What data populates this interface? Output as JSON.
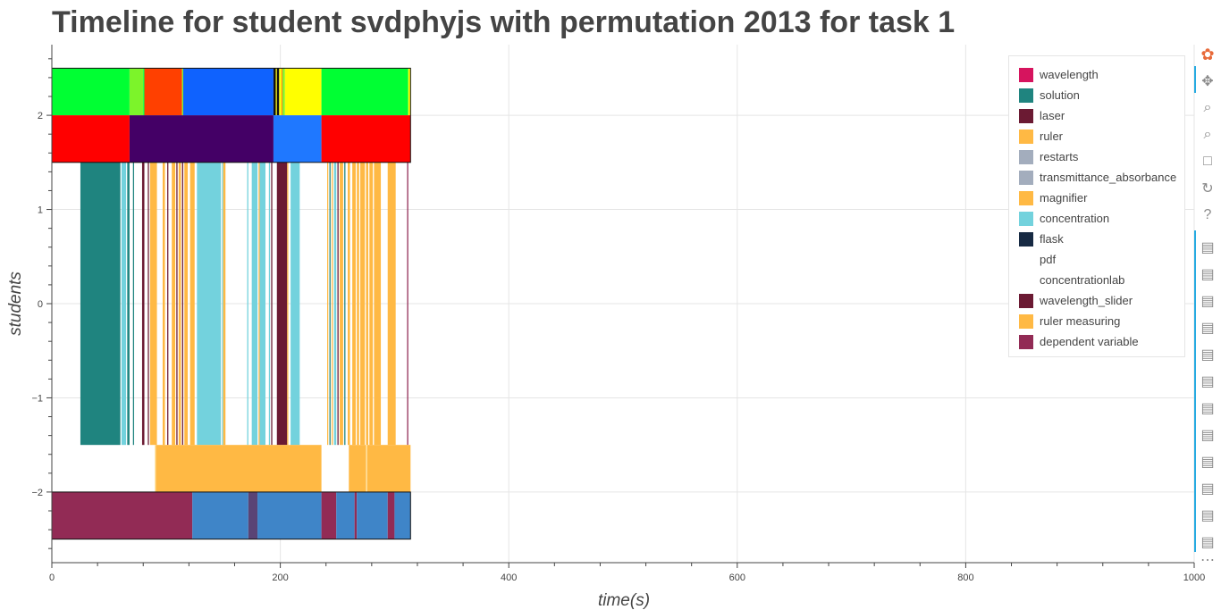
{
  "title": "Timeline for student svdphyjs with permutation 2013 for task 1",
  "chart_data": {
    "type": "timeline",
    "title": "Timeline for student svdphyjs with permutation 2013 for task 1",
    "xlabel": "time(s)",
    "ylabel": "students",
    "xlim": [
      0,
      1000
    ],
    "ylim": [
      -2.75,
      2.75
    ],
    "x_ticks": [
      0,
      200,
      400,
      600,
      800,
      1000
    ],
    "y_ticks": [
      2,
      1,
      0,
      -1,
      -2
    ],
    "y_tick_labels": [
      "2",
      "1",
      "0",
      "−1",
      "−2"
    ],
    "grid": true,
    "legend_position": "top-right",
    "legend": [
      {
        "label": "wavelength",
        "color": "#d6145e"
      },
      {
        "label": "solution",
        "color": "#1f847f"
      },
      {
        "label": "laser",
        "color": "#6b1a33"
      },
      {
        "label": "ruler",
        "color": "#ffb944"
      },
      {
        "label": "restarts",
        "color": "#a3adbd"
      },
      {
        "label": "transmittance_absorbance",
        "color": "#a3adbd"
      },
      {
        "label": "magnifier",
        "color": "#ffb944"
      },
      {
        "label": "concentration",
        "color": "#73d2dd"
      },
      {
        "label": "flask",
        "color": "#172a43"
      },
      {
        "label": "pdf",
        "color": "#ffffff"
      },
      {
        "label": "concentrationlab",
        "color": "#ffffff"
      },
      {
        "label": "wavelength_slider",
        "color": "#6b1a33"
      },
      {
        "label": "ruler measuring",
        "color": "#ffb944"
      },
      {
        "label": "dependent variable",
        "color": "#922b55"
      }
    ],
    "rows": [
      {
        "y_range": [
          2,
          2.5
        ],
        "segments": [
          {
            "x0": 0,
            "x1": 68,
            "color": "#00ff33"
          },
          {
            "x0": 68,
            "x1": 80,
            "color": "#7cf42a"
          },
          {
            "x0": 80,
            "x1": 81,
            "color": "#00ff33"
          },
          {
            "x0": 81,
            "x1": 114,
            "color": "#ff4000"
          },
          {
            "x0": 114,
            "x1": 115,
            "color": "#7cf42a"
          },
          {
            "x0": 115,
            "x1": 194,
            "color": "#0f62fe"
          },
          {
            "x0": 194,
            "x1": 196,
            "color": "#111111"
          },
          {
            "x0": 196,
            "x1": 197,
            "color": "#ffff00"
          },
          {
            "x0": 197,
            "x1": 199,
            "color": "#111111"
          },
          {
            "x0": 199,
            "x1": 201,
            "color": "#ffff00"
          },
          {
            "x0": 201,
            "x1": 202,
            "color": "#ff8800"
          },
          {
            "x0": 202,
            "x1": 204,
            "color": "#7cf42a"
          },
          {
            "x0": 204,
            "x1": 236,
            "color": "#ffff00"
          },
          {
            "x0": 236,
            "x1": 312,
            "color": "#00ff33"
          },
          {
            "x0": 312,
            "x1": 314,
            "color": "#ffff00"
          }
        ]
      },
      {
        "y_range": [
          1.5,
          2
        ],
        "segments": [
          {
            "x0": 0,
            "x1": 68,
            "color": "#ff0000"
          },
          {
            "x0": 68,
            "x1": 194,
            "color": "#440066"
          },
          {
            "x0": 194,
            "x1": 236,
            "color": "#1f78ff"
          },
          {
            "x0": 236,
            "x1": 314,
            "color": "#ff0000"
          }
        ]
      },
      {
        "y_range": [
          -1.5,
          1.5
        ],
        "segments": [
          {
            "x0": 25,
            "x1": 60,
            "color": "#1f847f"
          },
          {
            "x0": 61,
            "x1": 65,
            "color": "#73d2dd"
          },
          {
            "x0": 66,
            "x1": 68,
            "color": "#1f847f"
          },
          {
            "x0": 71,
            "x1": 72,
            "color": "#1f847f"
          },
          {
            "x0": 79,
            "x1": 81,
            "color": "#6b1a33"
          },
          {
            "x0": 84,
            "x1": 85,
            "color": "#6b1a33"
          },
          {
            "x0": 86,
            "x1": 92,
            "color": "#ffb944"
          },
          {
            "x0": 97,
            "x1": 99,
            "color": "#ffb944"
          },
          {
            "x0": 101,
            "x1": 102,
            "color": "#6b1a33"
          },
          {
            "x0": 105,
            "x1": 108,
            "color": "#ffb944"
          },
          {
            "x0": 109,
            "x1": 110,
            "color": "#6b1a33"
          },
          {
            "x0": 111,
            "x1": 113,
            "color": "#ffb944"
          },
          {
            "x0": 114,
            "x1": 115,
            "color": "#6b1a33"
          },
          {
            "x0": 116,
            "x1": 119,
            "color": "#ffb944"
          },
          {
            "x0": 121,
            "x1": 125,
            "color": "#ffb944"
          },
          {
            "x0": 127,
            "x1": 148,
            "color": "#73d2dd"
          },
          {
            "x0": 149,
            "x1": 150,
            "color": "#73d2dd"
          },
          {
            "x0": 150,
            "x1": 152,
            "color": "#ffb944"
          },
          {
            "x0": 171,
            "x1": 172,
            "color": "#73d2dd"
          },
          {
            "x0": 175,
            "x1": 180,
            "color": "#73d2dd"
          },
          {
            "x0": 181,
            "x1": 182,
            "color": "#ffb944"
          },
          {
            "x0": 182,
            "x1": 187,
            "color": "#73d2dd"
          },
          {
            "x0": 190,
            "x1": 191,
            "color": "#73d2dd"
          },
          {
            "x0": 192,
            "x1": 193,
            "color": "#6b1a33"
          },
          {
            "x0": 197,
            "x1": 206,
            "color": "#6b1a33"
          },
          {
            "x0": 206,
            "x1": 207,
            "color": "#ffb944"
          },
          {
            "x0": 209,
            "x1": 217,
            "color": "#73d2dd"
          },
          {
            "x0": 241,
            "x1": 242,
            "color": "#ffb944"
          },
          {
            "x0": 243,
            "x1": 244,
            "color": "#1f847f"
          },
          {
            "x0": 245,
            "x1": 246,
            "color": "#ffb944"
          },
          {
            "x0": 247,
            "x1": 249,
            "color": "#73d2dd"
          },
          {
            "x0": 250,
            "x1": 251,
            "color": "#6b1a33"
          },
          {
            "x0": 252,
            "x1": 255,
            "color": "#ffb944"
          },
          {
            "x0": 256,
            "x1": 257,
            "color": "#1f847f"
          },
          {
            "x0": 259,
            "x1": 261,
            "color": "#ffb944"
          },
          {
            "x0": 263,
            "x1": 266,
            "color": "#ffb944"
          },
          {
            "x0": 267,
            "x1": 269,
            "color": "#ffb944"
          },
          {
            "x0": 270,
            "x1": 274,
            "color": "#ffb944"
          },
          {
            "x0": 275,
            "x1": 277,
            "color": "#ffb944"
          },
          {
            "x0": 278,
            "x1": 281,
            "color": "#ffb944"
          },
          {
            "x0": 282,
            "x1": 288,
            "color": "#ffb944"
          },
          {
            "x0": 294,
            "x1": 301,
            "color": "#ffb944"
          },
          {
            "x0": 311,
            "x1": 312,
            "color": "#922b55"
          }
        ]
      },
      {
        "y_range": [
          -2,
          -1.5
        ],
        "segments": [
          {
            "x0": 90,
            "x1": 91,
            "color": "#ffe6a8"
          },
          {
            "x0": 91,
            "x1": 236,
            "color": "#ffb944"
          },
          {
            "x0": 260,
            "x1": 275,
            "color": "#ffb944"
          },
          {
            "x0": 275,
            "x1": 276,
            "color": "#ffe6a8"
          },
          {
            "x0": 276,
            "x1": 314,
            "color": "#ffb944"
          }
        ]
      },
      {
        "y_range": [
          -2.5,
          -2
        ],
        "segments": [
          {
            "x0": 0,
            "x1": 123,
            "color": "#922b55"
          },
          {
            "x0": 123,
            "x1": 172,
            "color": "#3f85c8"
          },
          {
            "x0": 172,
            "x1": 180,
            "color": "#5a4475"
          },
          {
            "x0": 180,
            "x1": 236,
            "color": "#3f85c8"
          },
          {
            "x0": 236,
            "x1": 249,
            "color": "#922b55"
          },
          {
            "x0": 249,
            "x1": 265,
            "color": "#3f85c8"
          },
          {
            "x0": 265,
            "x1": 267,
            "color": "#922b55"
          },
          {
            "x0": 267,
            "x1": 294,
            "color": "#3f85c8"
          },
          {
            "x0": 294,
            "x1": 300,
            "color": "#922b55"
          },
          {
            "x0": 300,
            "x1": 314,
            "color": "#3f85c8"
          }
        ]
      }
    ],
    "outlines": [
      {
        "x0": 0,
        "x1": 314,
        "y0": 1.5,
        "y1": 2.5
      },
      {
        "x0": 0,
        "x1": 314,
        "y0": -2.5,
        "y1": -2
      }
    ]
  },
  "toolbar": [
    {
      "name": "bokeh-logo-icon",
      "glyph": "✿",
      "color": "#e86a3a"
    },
    {
      "name": "pan-tool-icon",
      "glyph": "✥",
      "color": "#8a8a8a"
    },
    {
      "name": "box-zoom-tool-icon",
      "glyph": "⌕",
      "color": "#8a8a8a"
    },
    {
      "name": "wheel-zoom-tool-icon",
      "glyph": "⌕",
      "color": "#8a8a8a"
    },
    {
      "name": "save-tool-icon",
      "glyph": "□",
      "color": "#8a8a8a"
    },
    {
      "name": "reset-tool-icon",
      "glyph": "↻",
      "color": "#8a8a8a"
    },
    {
      "name": "help-tool-icon",
      "glyph": "?",
      "color": "#8a8a8a"
    },
    {
      "name": "hover-tool-icon",
      "glyph": "▤",
      "color": "#8a8a8a"
    },
    {
      "name": "hover-tool-icon",
      "glyph": "▤",
      "color": "#8a8a8a"
    },
    {
      "name": "hover-tool-icon",
      "glyph": "▤",
      "color": "#8a8a8a"
    },
    {
      "name": "hover-tool-icon",
      "glyph": "▤",
      "color": "#8a8a8a"
    },
    {
      "name": "hover-tool-icon",
      "glyph": "▤",
      "color": "#8a8a8a"
    },
    {
      "name": "hover-tool-icon",
      "glyph": "▤",
      "color": "#8a8a8a"
    },
    {
      "name": "hover-tool-icon",
      "glyph": "▤",
      "color": "#8a8a8a"
    },
    {
      "name": "hover-tool-icon",
      "glyph": "▤",
      "color": "#8a8a8a"
    },
    {
      "name": "hover-tool-icon",
      "glyph": "▤",
      "color": "#8a8a8a"
    },
    {
      "name": "hover-tool-icon",
      "glyph": "▤",
      "color": "#8a8a8a"
    },
    {
      "name": "hover-tool-icon",
      "glyph": "▤",
      "color": "#8a8a8a"
    },
    {
      "name": "hover-tool-icon",
      "glyph": "▤",
      "color": "#8a8a8a"
    },
    {
      "name": "more-tools-icon",
      "glyph": "⋯",
      "color": "#8a8a8a"
    }
  ]
}
